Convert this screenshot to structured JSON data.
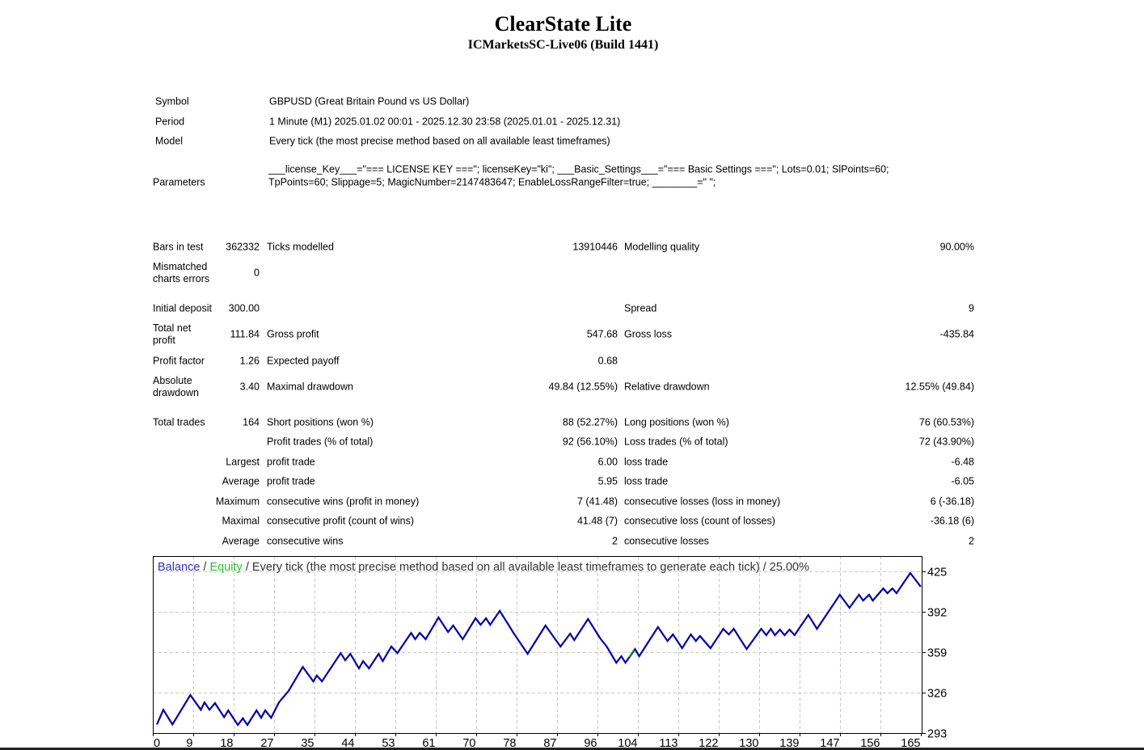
{
  "header": {
    "title": "ClearState Lite",
    "subtitle": "ICMarketsSC-Live06 (Build 1441)"
  },
  "info": [
    {
      "label": "Symbol",
      "value": "GBPUSD (Great Britain Pound vs US Dollar)"
    },
    {
      "label": "Period",
      "value": "1 Minute (M1) 2025.01.02 00:01 - 2025.12.30 23:58 (2025.01.01 - 2025.12.31)"
    },
    {
      "label": "Model",
      "value": "Every tick (the most precise method based on all available least timeframes)"
    }
  ],
  "parameters": {
    "label": "Parameters",
    "line1": "___license_Key___=\"=== LICENSE KEY ===\"; licenseKey=\"ki\"; ___Basic_Settings___=\"=== Basic Settings ===\"; Lots=0.01; SlPoints=60;",
    "line2": "TpPoints=60; Slippage=5; MagicNumber=2147483647; EnableLossRangeFilter=true; ________=\" \";"
  },
  "stats": [
    [
      "Bars in test",
      "362332",
      "Ticks modelled",
      "13910446",
      "Modelling quality",
      "90.00%"
    ],
    [
      "Mismatched\ncharts errors",
      "0",
      "",
      "",
      "",
      ""
    ],
    [
      "Initial deposit",
      "300.00",
      "",
      "",
      "Spread",
      "9"
    ],
    [
      "Total net\nprofit",
      "111.84",
      "Gross profit",
      "547.68",
      "Gross loss",
      "-435.84"
    ],
    [
      "Profit factor",
      "1.26",
      "Expected payoff",
      "0.68",
      "",
      ""
    ],
    [
      "Absolute\ndrawdown",
      "3.40",
      "Maximal drawdown",
      "49.84 (12.55%)",
      "Relative drawdown",
      "12.55% (49.84)"
    ],
    [
      "Total trades",
      "164",
      "Short positions (won %)",
      "88 (52.27%)",
      "Long positions (won %)",
      "76 (60.53%)"
    ],
    [
      "",
      "",
      "Profit trades (% of total)",
      "92 (56.10%)",
      "Loss trades (% of total)",
      "72 (43.90%)"
    ],
    [
      "",
      "Largest",
      "profit trade",
      "6.00",
      "loss trade",
      "-6.48"
    ],
    [
      "",
      "Average",
      "profit trade",
      "5.95",
      "loss trade",
      "-6.05"
    ],
    [
      "",
      "Maximum",
      "consecutive wins (profit in money)",
      "7 (41.48)",
      "consecutive losses (loss in money)",
      "6 (-36.18)"
    ],
    [
      "",
      "Maximal",
      "consecutive profit (count of wins)",
      "41.48 (7)",
      "consecutive loss (count of losses)",
      "-36.18 (6)"
    ],
    [
      "",
      "Average",
      "consecutive wins",
      "2",
      "consecutive losses",
      "2"
    ]
  ],
  "chart_data": {
    "type": "line",
    "legend": {
      "balance": "Balance",
      "sep": " / ",
      "equity": "Equity",
      "rest": " / Every tick (the most precise method based on all available least timeframes to generate each tick) / 25.00%"
    },
    "colors": {
      "balance": "#0000a8",
      "equity": "#00b000",
      "grid": "#c8c8c8",
      "legend_balance": "#3030c0",
      "legend_equity": "#30c030"
    },
    "xlabel": "",
    "ylabel": "",
    "x_ticks": [
      "0",
      "9",
      "18",
      "27",
      "35",
      "44",
      "53",
      "61",
      "70",
      "78",
      "87",
      "96",
      "104",
      "113",
      "122",
      "130",
      "139",
      "147",
      "156",
      "165"
    ],
    "y_ticks": [
      "425",
      "392",
      "359",
      "326",
      "293"
    ],
    "xlim": [
      -0.9,
      167.3
    ],
    "ylim": [
      293,
      425
    ],
    "grid": true,
    "series": [
      {
        "name": "Balance",
        "points": [
          [
            0,
            300
          ],
          [
            1.4,
            312
          ],
          [
            3.4,
            300
          ],
          [
            7.3,
            324
          ],
          [
            9.6,
            312
          ],
          [
            10.4,
            318
          ],
          [
            11.5,
            312
          ],
          [
            12.7,
            317.4
          ],
          [
            14.7,
            306
          ],
          [
            15.6,
            311.5
          ],
          [
            17.7,
            299.6
          ],
          [
            18.8,
            305
          ],
          [
            19.8,
            299.6
          ],
          [
            21.8,
            311.5
          ],
          [
            22.8,
            305.5
          ],
          [
            23.7,
            311.5
          ],
          [
            25,
            305.5
          ],
          [
            26.7,
            318
          ],
          [
            28.8,
            327.3
          ],
          [
            31.9,
            347
          ],
          [
            34.2,
            335.2
          ],
          [
            35,
            339.9
          ],
          [
            36.1,
            335.2
          ],
          [
            40.2,
            358.3
          ],
          [
            41.2,
            352.4
          ],
          [
            42.3,
            357.7
          ],
          [
            44.2,
            345.8
          ],
          [
            45.1,
            351.7
          ],
          [
            46.4,
            345.8
          ],
          [
            48.5,
            357.7
          ],
          [
            49.4,
            351.7
          ],
          [
            51.3,
            363.6
          ],
          [
            52.6,
            358.3
          ],
          [
            55.6,
            374.8
          ],
          [
            56.5,
            369.6
          ],
          [
            57.5,
            374.8
          ],
          [
            58.8,
            369.6
          ],
          [
            61.6,
            387.4
          ],
          [
            63.7,
            375.5
          ],
          [
            64.8,
            380.8
          ],
          [
            66.9,
            369.6
          ],
          [
            69.7,
            386.7
          ],
          [
            70.8,
            381.4
          ],
          [
            72,
            386.7
          ],
          [
            72.9,
            381.4
          ],
          [
            75,
            392.7
          ],
          [
            76.8,
            382.1
          ],
          [
            78,
            374.8
          ],
          [
            81.1,
            357.7
          ],
          [
            85,
            380.8
          ],
          [
            86.9,
            370.9
          ],
          [
            88.3,
            363.6
          ],
          [
            90.4,
            374.2
          ],
          [
            91.3,
            368.9
          ],
          [
            94.3,
            386.1
          ],
          [
            97,
            370.2
          ],
          [
            98.4,
            363.6
          ],
          [
            100.5,
            350.4
          ],
          [
            101.6,
            355.7
          ],
          [
            102.5,
            350.4
          ],
          [
            104.6,
            361.6
          ],
          [
            105.5,
            355.7
          ],
          [
            109.6,
            379.5
          ],
          [
            111.7,
            368.2
          ],
          [
            112.9,
            373.5
          ],
          [
            114.9,
            362.3
          ],
          [
            116.8,
            373.5
          ],
          [
            117.9,
            368.2
          ],
          [
            118.8,
            372.2
          ],
          [
            121.1,
            362.3
          ],
          [
            123.9,
            378.1
          ],
          [
            125.1,
            373.5
          ],
          [
            126.2,
            378.1
          ],
          [
            129,
            361.6
          ],
          [
            132.2,
            378.1
          ],
          [
            133.3,
            372.9
          ],
          [
            134.3,
            378.1
          ],
          [
            135.2,
            372.9
          ],
          [
            136.3,
            377.5
          ],
          [
            137.3,
            372.9
          ],
          [
            138.4,
            377.5
          ],
          [
            139.5,
            372.9
          ],
          [
            142.5,
            389.4
          ],
          [
            144.4,
            378.1
          ],
          [
            149.4,
            405.9
          ],
          [
            151.5,
            395.3
          ],
          [
            153.6,
            405.9
          ],
          [
            154.5,
            401.2
          ],
          [
            155.8,
            405.9
          ],
          [
            156.6,
            401.2
          ],
          [
            158.9,
            411.1
          ],
          [
            159.8,
            407.2
          ],
          [
            160.9,
            411.1
          ],
          [
            161.8,
            407.2
          ],
          [
            164.8,
            423.7
          ],
          [
            167.1,
            412.5
          ]
        ]
      },
      {
        "name": "Equity",
        "points": [
          [
            103.3,
            355
          ],
          [
            104.4,
            361.4
          ]
        ]
      }
    ]
  }
}
